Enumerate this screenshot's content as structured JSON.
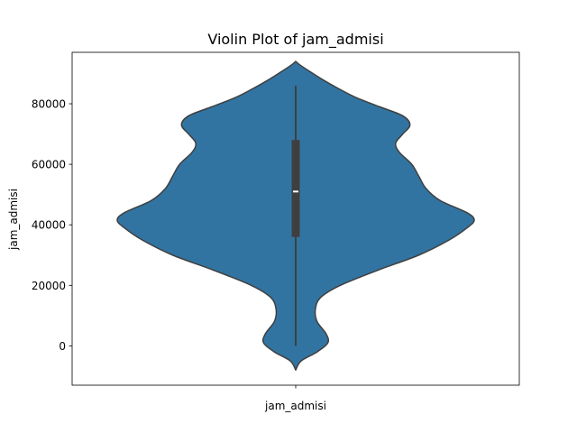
{
  "chart_data": {
    "type": "violin",
    "title": "Violin Plot of jam_admisi",
    "xlabel": "",
    "ylabel": "jam_admisi",
    "categories": [
      "jam_admisi"
    ],
    "ylim": [
      -13000,
      97000
    ],
    "yticks": [
      0,
      20000,
      40000,
      60000,
      80000
    ],
    "grid": false,
    "colors": {
      "violin_fill": "#3274a1",
      "violin_edge": "#3f3f3f",
      "box": "#3f3f3f",
      "median": "#ffffff"
    },
    "box": {
      "min": 0,
      "q1": 36000,
      "median": 51000,
      "q3": 68000,
      "max": 86000
    },
    "density_profile": [
      {
        "y": -8000,
        "w": 0.0
      },
      {
        "y": -5000,
        "w": 0.03
      },
      {
        "y": -2000,
        "w": 0.12
      },
      {
        "y": 1000,
        "w": 0.18
      },
      {
        "y": 4000,
        "w": 0.17
      },
      {
        "y": 8000,
        "w": 0.12
      },
      {
        "y": 12000,
        "w": 0.11
      },
      {
        "y": 16000,
        "w": 0.14
      },
      {
        "y": 20000,
        "w": 0.25
      },
      {
        "y": 25000,
        "w": 0.46
      },
      {
        "y": 30000,
        "w": 0.69
      },
      {
        "y": 35000,
        "w": 0.86
      },
      {
        "y": 39000,
        "w": 0.96
      },
      {
        "y": 41500,
        "w": 1.0
      },
      {
        "y": 44000,
        "w": 0.96
      },
      {
        "y": 48000,
        "w": 0.81
      },
      {
        "y": 52000,
        "w": 0.73
      },
      {
        "y": 56000,
        "w": 0.69
      },
      {
        "y": 60000,
        "w": 0.65
      },
      {
        "y": 64000,
        "w": 0.58
      },
      {
        "y": 67000,
        "w": 0.56
      },
      {
        "y": 70000,
        "w": 0.6
      },
      {
        "y": 73000,
        "w": 0.64
      },
      {
        "y": 76000,
        "w": 0.6
      },
      {
        "y": 79000,
        "w": 0.47
      },
      {
        "y": 82000,
        "w": 0.34
      },
      {
        "y": 85000,
        "w": 0.24
      },
      {
        "y": 88000,
        "w": 0.15
      },
      {
        "y": 91000,
        "w": 0.07
      },
      {
        "y": 93000,
        "w": 0.02
      },
      {
        "y": 94000,
        "w": 0.0
      }
    ]
  }
}
